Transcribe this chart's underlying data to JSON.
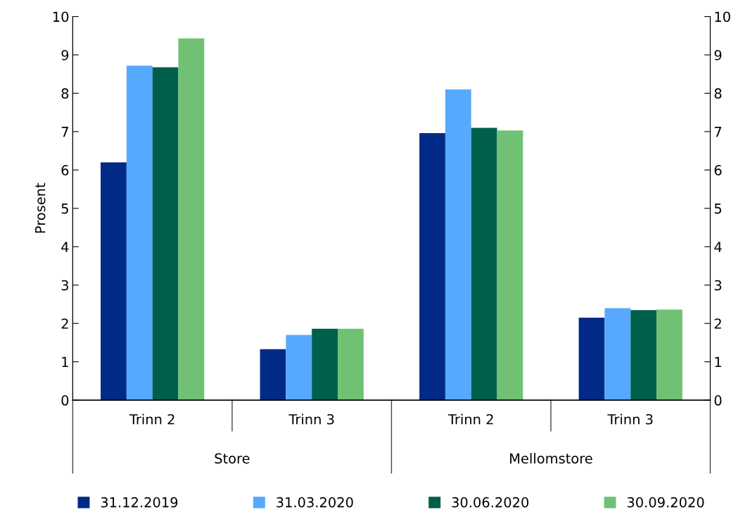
{
  "chart_data": {
    "type": "bar",
    "ylabel": "Prosent",
    "categories": [
      "Trinn 2",
      "Trinn 3",
      "Trinn 2",
      "Trinn 3"
    ],
    "series": [
      {
        "name": "31.12.2019",
        "color": "#012a86",
        "values": [
          6.2,
          1.33,
          6.96,
          2.15
        ]
      },
      {
        "name": "31.03.2020",
        "color": "#56a9ff",
        "values": [
          8.72,
          1.7,
          8.1,
          2.4
        ]
      },
      {
        "name": "30.06.2020",
        "color": "#005f4b",
        "values": [
          8.68,
          1.86,
          7.1,
          2.35
        ]
      },
      {
        "name": "30.09.2020",
        "color": "#71c174",
        "values": [
          9.43,
          1.86,
          7.03,
          2.36
        ]
      }
    ],
    "annotations": [
      "Store",
      "Mellomstore"
    ],
    "ylim": [
      0,
      10
    ],
    "yticks": [
      0,
      1,
      2,
      3,
      4,
      5,
      6,
      7,
      8,
      9,
      10
    ],
    "y2lim": [
      0,
      10
    ],
    "y2ticks": [
      0,
      1,
      2,
      3,
      4,
      5,
      6,
      7,
      8,
      9,
      10
    ],
    "grid": false,
    "legend": "bottom"
  }
}
